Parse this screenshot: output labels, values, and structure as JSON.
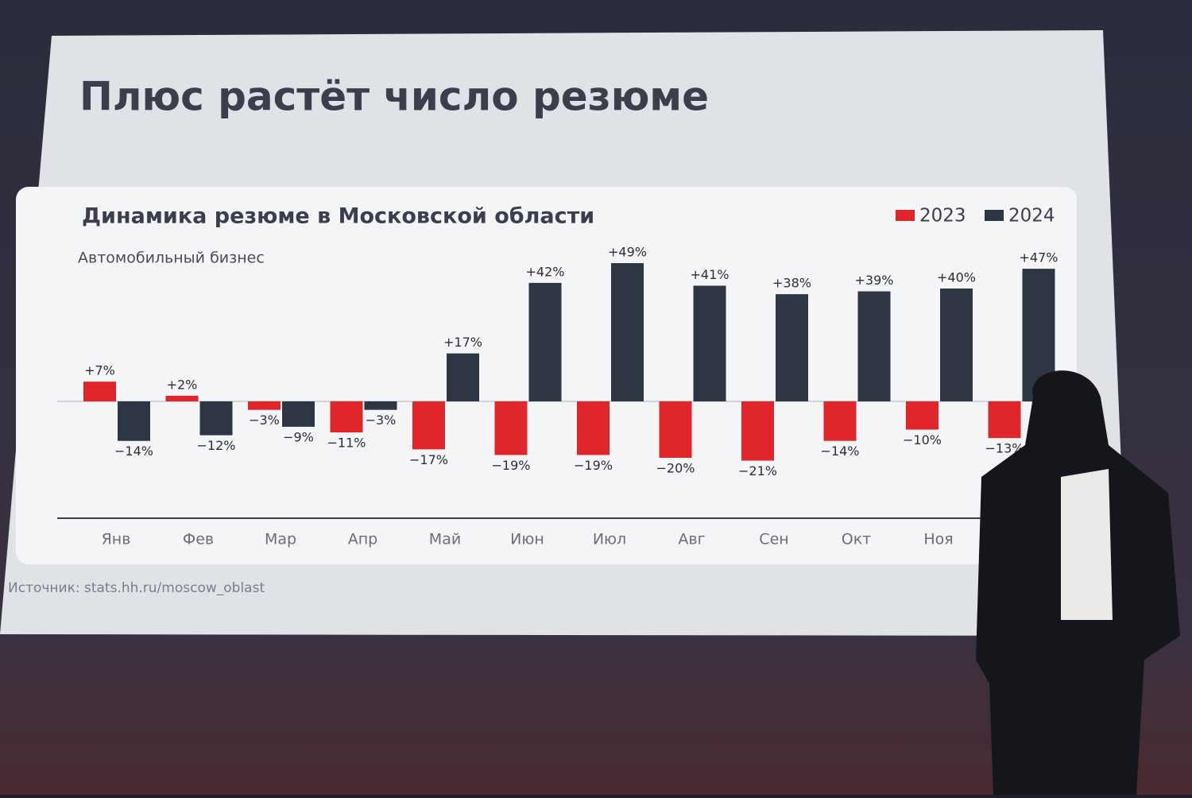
{
  "slide_title": "Плюс растёт число резюме",
  "source": "Источник: stats.hh.ru/moscow_oblast",
  "chart_data": {
    "type": "bar",
    "title": "Динамика резюме в Московской области",
    "subtitle": "Автомобильный бизнес",
    "categories": [
      "Янв",
      "Фев",
      "Мар",
      "Апр",
      "Май",
      "Июн",
      "Июл",
      "Авг",
      "Сен",
      "Окт",
      "Ноя",
      null
    ],
    "series": [
      {
        "name": "2023",
        "color": "#e0252b",
        "values": [
          7,
          2,
          -3,
          -11,
          -17,
          -19,
          -19,
          -20,
          -21,
          -14,
          -10,
          -13
        ],
        "value_labels": [
          "+7%",
          "+2%",
          "−3%",
          "−11%",
          "−17%",
          "−19%",
          "−19%",
          "−20%",
          "−21%",
          "−14%",
          "−10%",
          "−13%"
        ]
      },
      {
        "name": "2024",
        "color": "#2e3644",
        "values": [
          -14,
          -12,
          -9,
          -3,
          17,
          42,
          49,
          41,
          38,
          39,
          40,
          47
        ],
        "value_labels": [
          "−14%",
          "−12%",
          "−9%",
          "−3%",
          "+17%",
          "+42%",
          "+49%",
          "+41%",
          "+38%",
          "+39%",
          "+40%",
          "+47%"
        ]
      }
    ],
    "ylim": [
      -40,
      50
    ],
    "legend": "top-right"
  }
}
